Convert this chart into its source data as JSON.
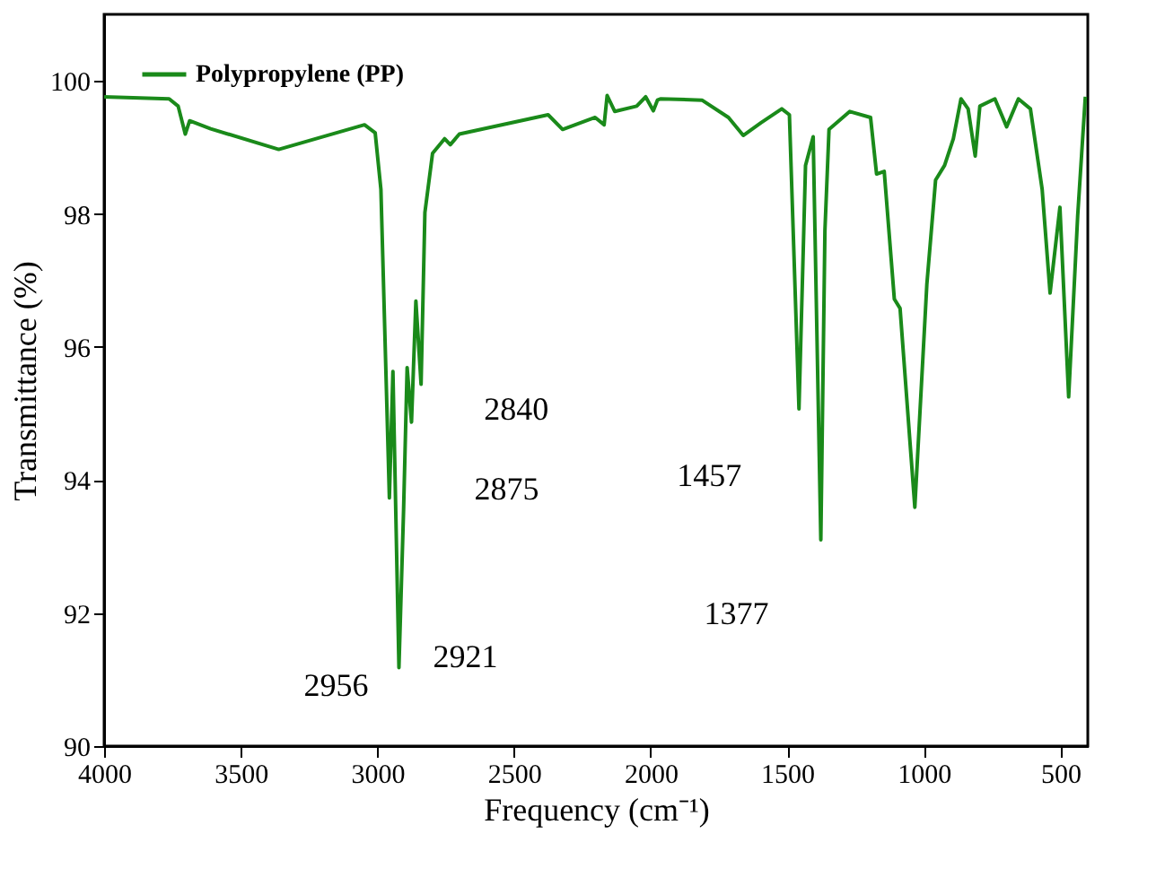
{
  "chart_data": {
    "type": "line",
    "xlabel": "Frequency (cm⁻¹)",
    "ylabel": "Transmittance (%)",
    "xlim": [
      4000,
      400
    ],
    "xticks": [
      4000,
      3500,
      3000,
      2500,
      2000,
      1500,
      1000,
      500
    ],
    "ylim": [
      90,
      101
    ],
    "yticks": [
      90,
      92,
      94,
      96,
      98,
      100
    ],
    "grid": false,
    "legend": "top left",
    "marker": "none",
    "line_style": "solid",
    "series": [
      {
        "name": "Polypropylene (PP)",
        "color": "#1a8a1a",
        "x": [
          4000,
          3762,
          3729,
          3703,
          3687,
          3610,
          3361,
          3047,
          3008,
          2987,
          2956,
          2943,
          2921,
          2904,
          2891,
          2875,
          2859,
          2840,
          2826,
          2798,
          2754,
          2733,
          2700,
          2375,
          2322,
          2203,
          2170,
          2159,
          2131,
          2051,
          2018,
          1990,
          1975,
          1964,
          1812,
          1715,
          1661,
          1596,
          1520,
          1492,
          1457,
          1433,
          1405,
          1377,
          1362,
          1347,
          1271,
          1195,
          1173,
          1145,
          1108,
          1087,
          1033,
          989,
          957,
          924,
          892,
          864,
          838,
          812,
          795,
          740,
          697,
          654,
          610,
          567,
          538,
          502,
          470,
          437,
          409
        ],
        "values": [
          99.76,
          99.73,
          99.62,
          99.2,
          99.4,
          99.28,
          98.97,
          99.34,
          99.22,
          98.37,
          93.73,
          95.63,
          91.18,
          93.55,
          95.69,
          94.87,
          96.69,
          95.44,
          98.02,
          98.91,
          99.13,
          99.04,
          99.2,
          99.49,
          99.27,
          99.45,
          99.34,
          99.78,
          99.54,
          99.62,
          99.76,
          99.55,
          99.71,
          99.73,
          99.71,
          99.45,
          99.18,
          99.37,
          99.58,
          99.49,
          95.07,
          98.73,
          99.16,
          93.1,
          97.75,
          99.27,
          99.54,
          99.45,
          98.6,
          98.64,
          96.72,
          96.58,
          93.59,
          96.94,
          98.51,
          98.73,
          99.13,
          99.73,
          99.58,
          98.87,
          99.62,
          99.73,
          99.31,
          99.73,
          99.58,
          98.37,
          96.81,
          98.1,
          95.25,
          97.97,
          99.76
        ]
      }
    ],
    "annotations": [
      {
        "text": "2956",
        "x": 2921,
        "y": 91.18
      },
      {
        "text": "2921",
        "x": 2921,
        "y": 91.18
      },
      {
        "text": "2875",
        "x": 2875,
        "y": 94.87
      },
      {
        "text": "2840",
        "x": 2840,
        "y": 95.44
      },
      {
        "text": "1457",
        "x": 1457,
        "y": 95.07
      },
      {
        "text": "1377",
        "x": 1377,
        "y": 93.1
      }
    ]
  }
}
